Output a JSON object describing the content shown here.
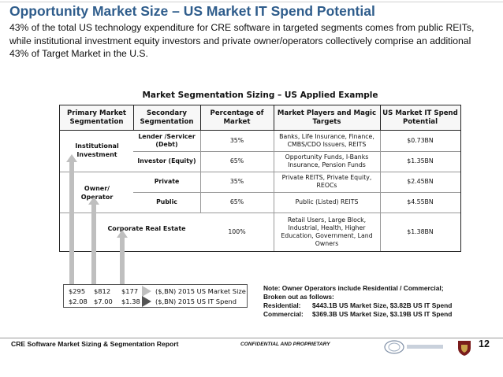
{
  "header": {
    "title": "Opportunity Market Size – US Market IT Spend Potential",
    "subtitle": "43% of the total US technology expenditure for CRE software in targeted segments comes from public REITs, while institutional investment equity investors and private owner/operators collectively comprise an additional 43% of Target Market in the U.S."
  },
  "table": {
    "title": "Market Segmentation Sizing – US Applied Example",
    "headers": [
      "Primary Market Segmentation",
      "Secondary Segmentation",
      "Percentage of Market",
      "Market Players and Magic  Targets",
      "US Market IT Spend Potential"
    ],
    "primary": {
      "institutional": "Institutional Investment",
      "owner": "Owner/ Operator",
      "corporate": "Corporate Real Estate"
    },
    "rows": [
      {
        "secondary": "Lender /Servicer (Debt)",
        "percent": "35%",
        "players": "Banks, Life Insurance, Finance, CMBS/CDO Issuers, REITS",
        "spend": "$0.73BN"
      },
      {
        "secondary": "Investor (Equity)",
        "percent": "65%",
        "players": "Opportunity Funds, I-Banks Insurance, Pension Funds",
        "spend": "$1.35BN"
      },
      {
        "secondary": "Private",
        "percent": "35%",
        "players": "Private REITS, Private Equity, REOCs",
        "spend": "$2.45BN"
      },
      {
        "secondary": "Public",
        "percent": "65%",
        "players": "Public (Listed) REITS",
        "spend": "$4.55BN"
      },
      {
        "secondary": "",
        "percent": "100%",
        "players": "Retail Users, Large Block, Industrial, Health, Higher Education, Government, Land Owners",
        "spend": "$1.38BN"
      }
    ]
  },
  "legend": {
    "market_values": [
      "$295",
      "$812",
      "$177"
    ],
    "spend_values": [
      "$2.08",
      "$7.00",
      "$1.38"
    ],
    "market_label": "($,BN) 2015 US Market Size",
    "spend_label": "($,BN) 2015 US IT Spend",
    "market_color": "#bfbfbf",
    "spend_color": "#555555"
  },
  "note": {
    "line1": "Note:  Owner Operators include Residential / Commercial;",
    "line2": "Broken out as follows:",
    "residential_label": "Residential:",
    "residential_value": "$443.1B US Market Size, $3.82B US IT Spend",
    "commercial_label": "Commercial:",
    "commercial_value": "$369.3B US Market Size, $3.19B US IT Spend"
  },
  "footer": {
    "left": "CRE Software Market Sizing & Segmentation Report",
    "center": "CONFIDENTIAL AND PROPRIETARY",
    "page_number": "12"
  }
}
